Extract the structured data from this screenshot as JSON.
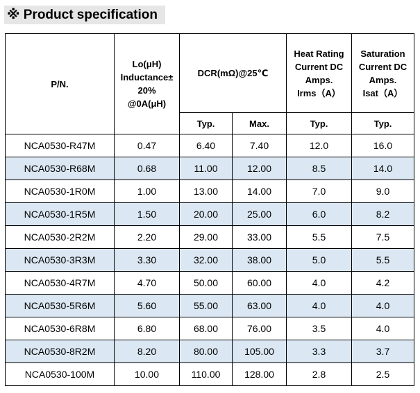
{
  "title": "※  Product specification",
  "header": {
    "pn": "P/N.",
    "inductance": "Lo(μH)\nInductance±\n20%\n@0A(μH)",
    "dcr": "DCR(mΩ)@25℃",
    "heat": "Heat Rating\nCurrent DC\nAmps.\nIrms（A）",
    "sat": "Saturation\nCurrent DC\nAmps.\nIsat（A）",
    "typ": "Typ.",
    "max": "Max."
  },
  "rows": [
    {
      "pn": "NCA0530-R47M",
      "l": "0.47",
      "dcr_typ": "6.40",
      "dcr_max": "7.40",
      "irms": "12.0",
      "isat": "16.0"
    },
    {
      "pn": "NCA0530-R68M",
      "l": "0.68",
      "dcr_typ": "11.00",
      "dcr_max": "12.00",
      "irms": "8.5",
      "isat": "14.0"
    },
    {
      "pn": "NCA0530-1R0M",
      "l": "1.00",
      "dcr_typ": "13.00",
      "dcr_max": "14.00",
      "irms": "7.0",
      "isat": "9.0"
    },
    {
      "pn": "NCA0530-1R5M",
      "l": "1.50",
      "dcr_typ": "20.00",
      "dcr_max": "25.00",
      "irms": "6.0",
      "isat": "8.2"
    },
    {
      "pn": "NCA0530-2R2M",
      "l": "2.20",
      "dcr_typ": "29.00",
      "dcr_max": "33.00",
      "irms": "5.5",
      "isat": "7.5"
    },
    {
      "pn": "NCA0530-3R3M",
      "l": "3.30",
      "dcr_typ": "32.00",
      "dcr_max": "38.00",
      "irms": "5.0",
      "isat": "5.5"
    },
    {
      "pn": "NCA0530-4R7M",
      "l": "4.70",
      "dcr_typ": "50.00",
      "dcr_max": "60.00",
      "irms": "4.0",
      "isat": "4.2"
    },
    {
      "pn": "NCA0530-5R6M",
      "l": "5.60",
      "dcr_typ": "55.00",
      "dcr_max": "63.00",
      "irms": "4.0",
      "isat": "4.0"
    },
    {
      "pn": "NCA0530-6R8M",
      "l": "6.80",
      "dcr_typ": "68.00",
      "dcr_max": "76.00",
      "irms": "3.5",
      "isat": "4.0"
    },
    {
      "pn": "NCA0530-8R2M",
      "l": "8.20",
      "dcr_typ": "80.00",
      "dcr_max": "105.00",
      "irms": "3.3",
      "isat": "3.7"
    },
    {
      "pn": "NCA0530-100M",
      "l": "10.00",
      "dcr_typ": "110.00",
      "dcr_max": "128.00",
      "irms": "2.8",
      "isat": "2.5"
    }
  ],
  "colors": {
    "title_bg": "#e6e6e6",
    "row_shade": "#dbe7f2",
    "border": "#000000"
  }
}
